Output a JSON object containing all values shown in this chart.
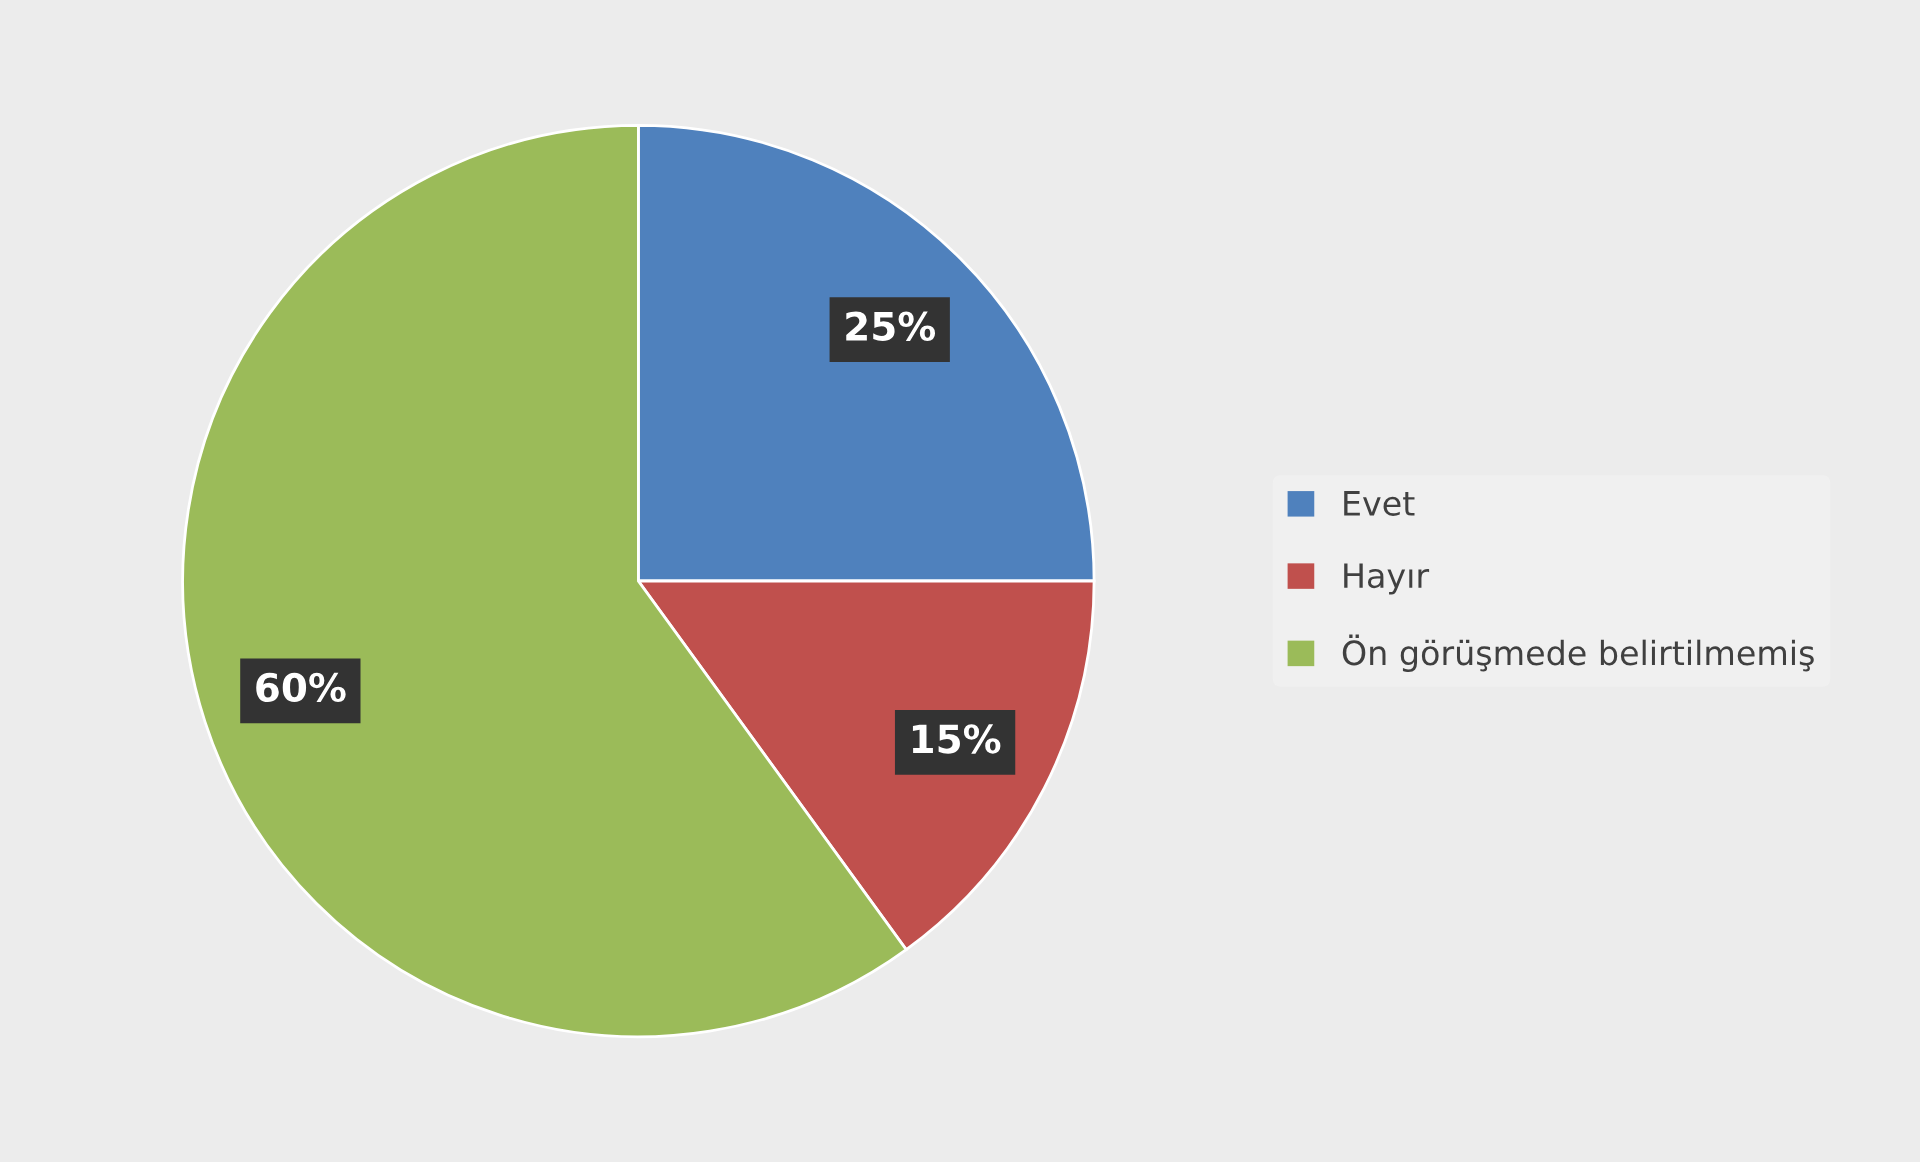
{
  "chart_data": {
    "type": "pie",
    "categories": [
      "Evet",
      "Hayır",
      "Ön görüşmede belirtilmemiş"
    ],
    "values": [
      25,
      15,
      60
    ],
    "colors": [
      "#4f81bd",
      "#c0504d",
      "#9bbb59"
    ],
    "value_labels": [
      "25%",
      "15%",
      "60%"
    ],
    "legend": "right"
  }
}
